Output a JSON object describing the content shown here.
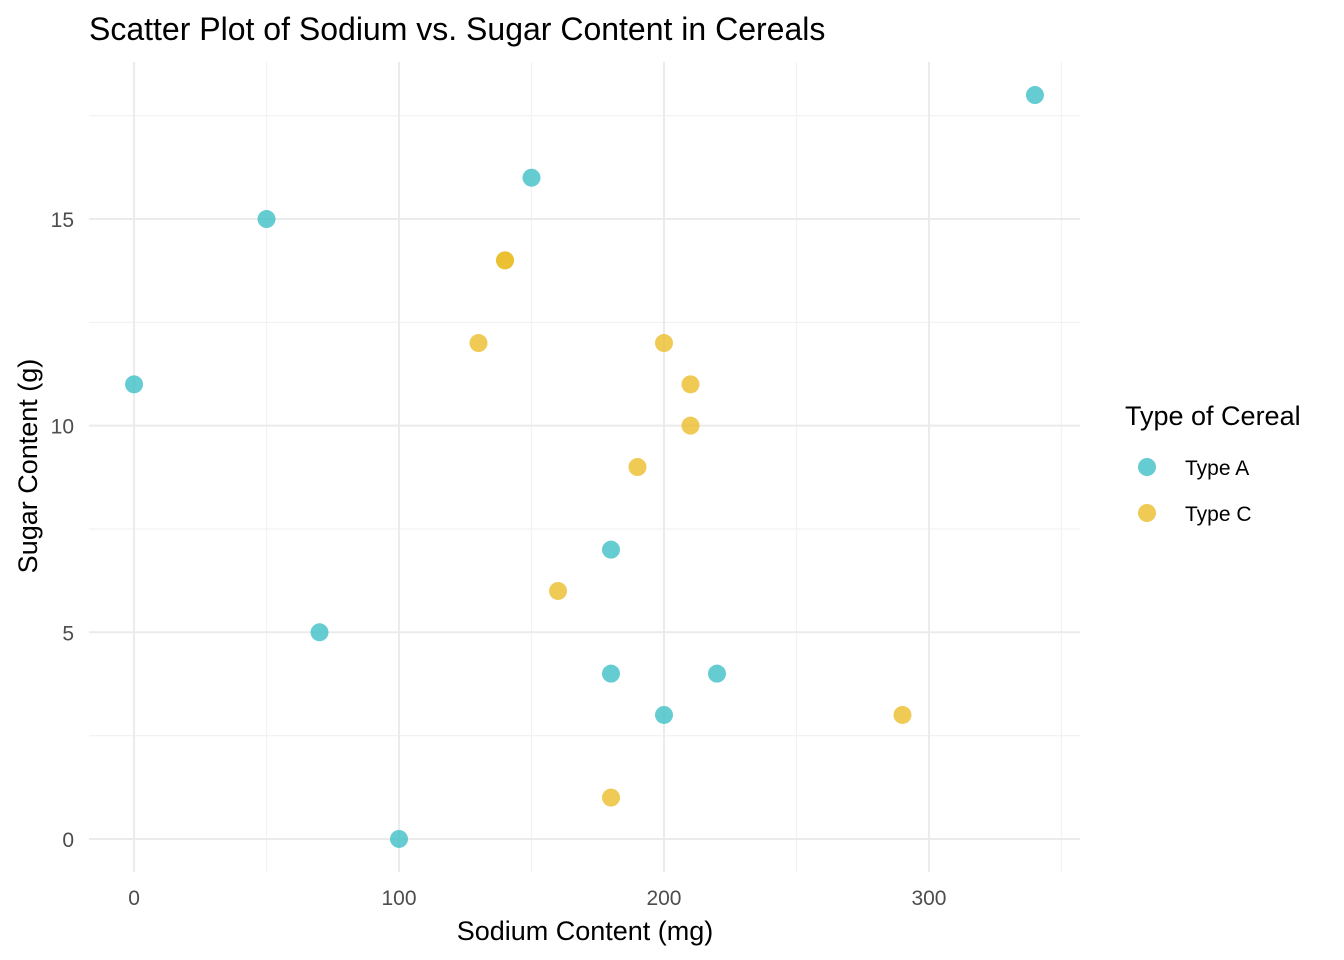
{
  "chart_data": {
    "type": "scatter",
    "title": "Scatter Plot of Sodium vs. Sugar Content in Cereals",
    "xlabel": "Sodium Content (mg)",
    "ylabel": "Sugar Content (g)",
    "xlim": [
      -17,
      357
    ],
    "ylim": [
      -0.8,
      18.8
    ],
    "x_ticks": [
      0,
      100,
      200,
      300
    ],
    "x_minor_ticks": [
      50,
      150,
      250,
      350
    ],
    "y_ticks": [
      0,
      5,
      10,
      15
    ],
    "y_minor_ticks": [
      2.5,
      7.5,
      12.5,
      17.5
    ],
    "grid": true,
    "legend": {
      "title": "Type of Cereal",
      "position": "right"
    },
    "series": [
      {
        "name": "Type A",
        "color": "#3fbfc7",
        "points": [
          {
            "x": 0,
            "y": 11
          },
          {
            "x": 50,
            "y": 15
          },
          {
            "x": 70,
            "y": 5
          },
          {
            "x": 100,
            "y": 0
          },
          {
            "x": 150,
            "y": 16
          },
          {
            "x": 180,
            "y": 7
          },
          {
            "x": 180,
            "y": 4
          },
          {
            "x": 200,
            "y": 3
          },
          {
            "x": 220,
            "y": 4
          },
          {
            "x": 340,
            "y": 18
          }
        ]
      },
      {
        "name": "Type C",
        "color": "#ebbd2a",
        "points": [
          {
            "x": 140,
            "y": 14
          },
          {
            "x": 140,
            "y": 14
          },
          {
            "x": 130,
            "y": 12
          },
          {
            "x": 200,
            "y": 12
          },
          {
            "x": 210,
            "y": 11
          },
          {
            "x": 210,
            "y": 10
          },
          {
            "x": 190,
            "y": 9
          },
          {
            "x": 160,
            "y": 6
          },
          {
            "x": 290,
            "y": 3
          },
          {
            "x": 180,
            "y": 1
          }
        ]
      }
    ]
  }
}
